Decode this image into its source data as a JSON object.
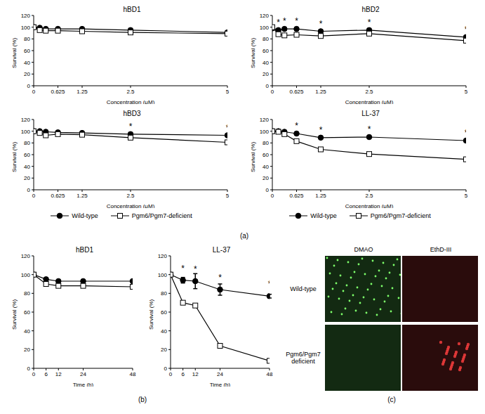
{
  "chart_data": [
    {
      "type": "line",
      "title": "hBD1",
      "x_label": "Concentration (μM)",
      "y_label": "Survival (%)",
      "x": [
        0,
        0.156,
        0.3125,
        0.625,
        1.25,
        2.5,
        5
      ],
      "xlim": [
        0,
        5
      ],
      "xticks": [
        0,
        0.625,
        1.25,
        2.5,
        5
      ],
      "ylim": [
        0,
        120
      ],
      "yticks": [
        0,
        20,
        40,
        60,
        80,
        100,
        120
      ],
      "series": [
        {
          "name": "Wild-type",
          "color": "#000000",
          "marker": "circle",
          "values": [
            100,
            99,
            97,
            97,
            97,
            95,
            91
          ]
        },
        {
          "name": "Pgm6/Pgm7-deficient",
          "color": "#000000",
          "marker": "square",
          "values": [
            100,
            95,
            94,
            94,
            93,
            91,
            89
          ]
        }
      ],
      "annotations": []
    },
    {
      "type": "line",
      "title": "hBD2",
      "x_label": "Concentration (μM)",
      "y_label": "Survival (%)",
      "x": [
        0,
        0.156,
        0.3125,
        0.625,
        1.25,
        2.5,
        5
      ],
      "xlim": [
        0,
        5
      ],
      "xticks": [
        0,
        0.625,
        1.25,
        2.5,
        5
      ],
      "ylim": [
        0,
        120
      ],
      "yticks": [
        0,
        20,
        40,
        60,
        80,
        100,
        120
      ],
      "series": [
        {
          "name": "Wild-type",
          "color": "#000000",
          "marker": "circle",
          "values": [
            98,
            95,
            97,
            97,
            93,
            95,
            83
          ]
        },
        {
          "name": "Pgm6/Pgm7-deficient",
          "color": "#000000",
          "marker": "square",
          "values": [
            100,
            88,
            86,
            87,
            85,
            89,
            77
          ]
        }
      ],
      "annotations": [
        {
          "x": 0.156,
          "text": "*"
        },
        {
          "x": 0.3125,
          "text": "*"
        },
        {
          "x": 0.625,
          "text": "*"
        },
        {
          "x": 1.25,
          "text": "*"
        },
        {
          "x": 2.5,
          "text": "*"
        },
        {
          "x": 5,
          "text": "*"
        }
      ]
    },
    {
      "type": "line",
      "title": "hBD3",
      "x_label": "Concentration (μM)",
      "y_label": "Survival (%)",
      "legend": "bottom",
      "x": [
        0,
        0.156,
        0.3125,
        0.625,
        1.25,
        2.5,
        5
      ],
      "xlim": [
        0,
        5
      ],
      "xticks": [
        0,
        0.625,
        1.25,
        2.5,
        5
      ],
      "ylim": [
        0,
        120
      ],
      "yticks": [
        0,
        20,
        40,
        60,
        80,
        100,
        120
      ],
      "series": [
        {
          "name": "Wild-type",
          "color": "#000000",
          "marker": "circle",
          "values": [
            100,
            100,
            99,
            98,
            97,
            95,
            93
          ]
        },
        {
          "name": "Pgm6/Pgm7-deficient",
          "color": "#000000",
          "marker": "square",
          "values": [
            100,
            97,
            93,
            95,
            94,
            89,
            81
          ]
        }
      ],
      "annotations": [
        {
          "x": 2.5,
          "text": "*"
        },
        {
          "x": 5,
          "text": "*"
        }
      ]
    },
    {
      "type": "line",
      "title": "LL-37",
      "x_label": "Concentration (μM)",
      "y_label": "Survival (%)",
      "legend": "bottom",
      "x": [
        0,
        0.156,
        0.3125,
        0.625,
        1.25,
        2.5,
        5
      ],
      "xlim": [
        0,
        5
      ],
      "xticks": [
        0,
        0.625,
        1.25,
        2.5,
        5
      ],
      "ylim": [
        0,
        120
      ],
      "yticks": [
        0,
        20,
        40,
        60,
        80,
        100,
        120
      ],
      "series": [
        {
          "name": "Wild-type",
          "color": "#000000",
          "marker": "circle",
          "values": [
            100,
            100,
            99,
            96,
            89,
            90,
            84
          ]
        },
        {
          "name": "Pgm6/Pgm7-deficient",
          "color": "#000000",
          "marker": "square",
          "values": [
            100,
            99,
            95,
            83,
            69,
            61,
            52
          ]
        }
      ],
      "annotations": [
        {
          "x": 0.625,
          "text": "*"
        },
        {
          "x": 1.25,
          "text": "*"
        },
        {
          "x": 2.5,
          "text": "*"
        },
        {
          "x": 5,
          "text": "*"
        }
      ]
    },
    {
      "type": "line",
      "title": "hBD1",
      "x_label": "Time (h)",
      "y_label": "Survival (%)",
      "x": [
        0,
        6,
        12,
        24,
        48
      ],
      "xlim": [
        0,
        48
      ],
      "xticks": [
        0,
        6,
        12,
        24,
        48
      ],
      "ylim": [
        0,
        120
      ],
      "yticks": [
        0,
        20,
        40,
        60,
        80,
        100,
        120
      ],
      "series": [
        {
          "name": "Wild-type",
          "color": "#000000",
          "marker": "circle",
          "values": [
            100,
            95,
            93,
            93,
            93
          ]
        },
        {
          "name": "Pgm6/Pgm7-deficient",
          "color": "#000000",
          "marker": "square",
          "values": [
            100,
            90,
            88,
            88,
            87
          ]
        }
      ],
      "annotations": []
    },
    {
      "type": "line",
      "title": "LL-37",
      "x_label": "Time (h)",
      "y_label": "Survival (%)",
      "x": [
        0,
        6,
        12,
        24,
        48
      ],
      "xlim": [
        0,
        48
      ],
      "xticks": [
        0,
        6,
        12,
        24,
        48
      ],
      "ylim": [
        0,
        120
      ],
      "yticks": [
        0,
        20,
        40,
        60,
        80,
        100,
        120
      ],
      "series": [
        {
          "name": "Wild-type",
          "color": "#000000",
          "marker": "circle",
          "values": [
            100,
            94,
            93,
            84,
            77
          ],
          "errors": [
            0,
            3,
            8,
            6,
            2
          ]
        },
        {
          "name": "Pgm6/Pgm7-deficient",
          "color": "#000000",
          "marker": "square",
          "values": [
            100,
            70,
            67,
            24,
            8
          ]
        }
      ],
      "annotations": [
        {
          "x": 6,
          "text": "*"
        },
        {
          "x": 12,
          "text": "*"
        },
        {
          "x": 24,
          "text": "*"
        },
        {
          "x": 48,
          "text": "*"
        }
      ]
    }
  ],
  "panel_labels": [
    "(a)",
    "(b)",
    "(c)"
  ],
  "image_panel": {
    "columns": [
      "DMAO",
      "EthD-III"
    ],
    "rows": [
      "Wild-type",
      "Pgm6/Pgm7 deficient"
    ]
  }
}
